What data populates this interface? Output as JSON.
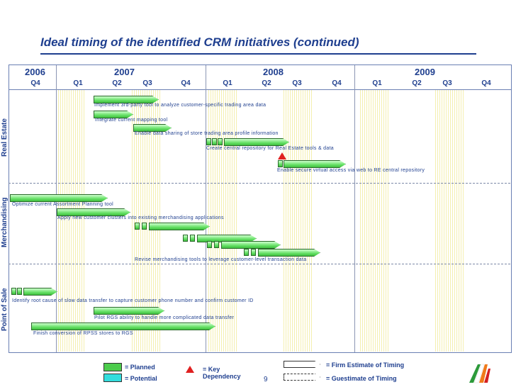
{
  "title": "Ideal timing of the identified CRM initiatives (continued)",
  "years": [
    "2006",
    "2007",
    "2008",
    "2009"
  ],
  "quarters": [
    "Q4",
    "Q1",
    "Q2",
    "Q3",
    "Q4",
    "Q1",
    "Q2",
    "Q3",
    "Q4",
    "Q1",
    "Q2",
    "Q3",
    "Q4"
  ],
  "sections": {
    "real_estate": "Real Estate",
    "merchandising": "Merchandising",
    "point_of_sale": "Point of Sale"
  },
  "tasks": {
    "re1": "Implement 3rd-party tool to analyze customer-specific trading area data",
    "re2": "Integrate current mapping tool",
    "re3": "Enable data sharing of store trading area profile information",
    "re4": "Create central repository for Real Estate tools & data",
    "re5": "Enable secure virtual access via web to RE central repository",
    "m1": "Optimize current Assortment Planning tool",
    "m2": "Apply new customer clusters into existing merchandising applications",
    "m3": "Revise merchandising tools to leverage customer-level transaction data",
    "p1": "Identify root cause of slow data transfer to capture customer phone number and confirm customer ID",
    "p2": "Pilot RGS ability to handle more complicated data transfer",
    "p3": "Finish conversion of RPSS stores to RGS"
  },
  "legend": {
    "planned": "= Planned",
    "potential": "= Potential",
    "key_dependency": "= Key Dependency",
    "firm_estimate": "= Firm Estimate of Timing",
    "guestimate": "= Guestimate of Timing"
  },
  "colors": {
    "planned": "#4ccc4c",
    "potential": "#33dddd",
    "key_dependency": "#e02020",
    "accent": "#1f3f8f"
  },
  "page_number": "9"
}
